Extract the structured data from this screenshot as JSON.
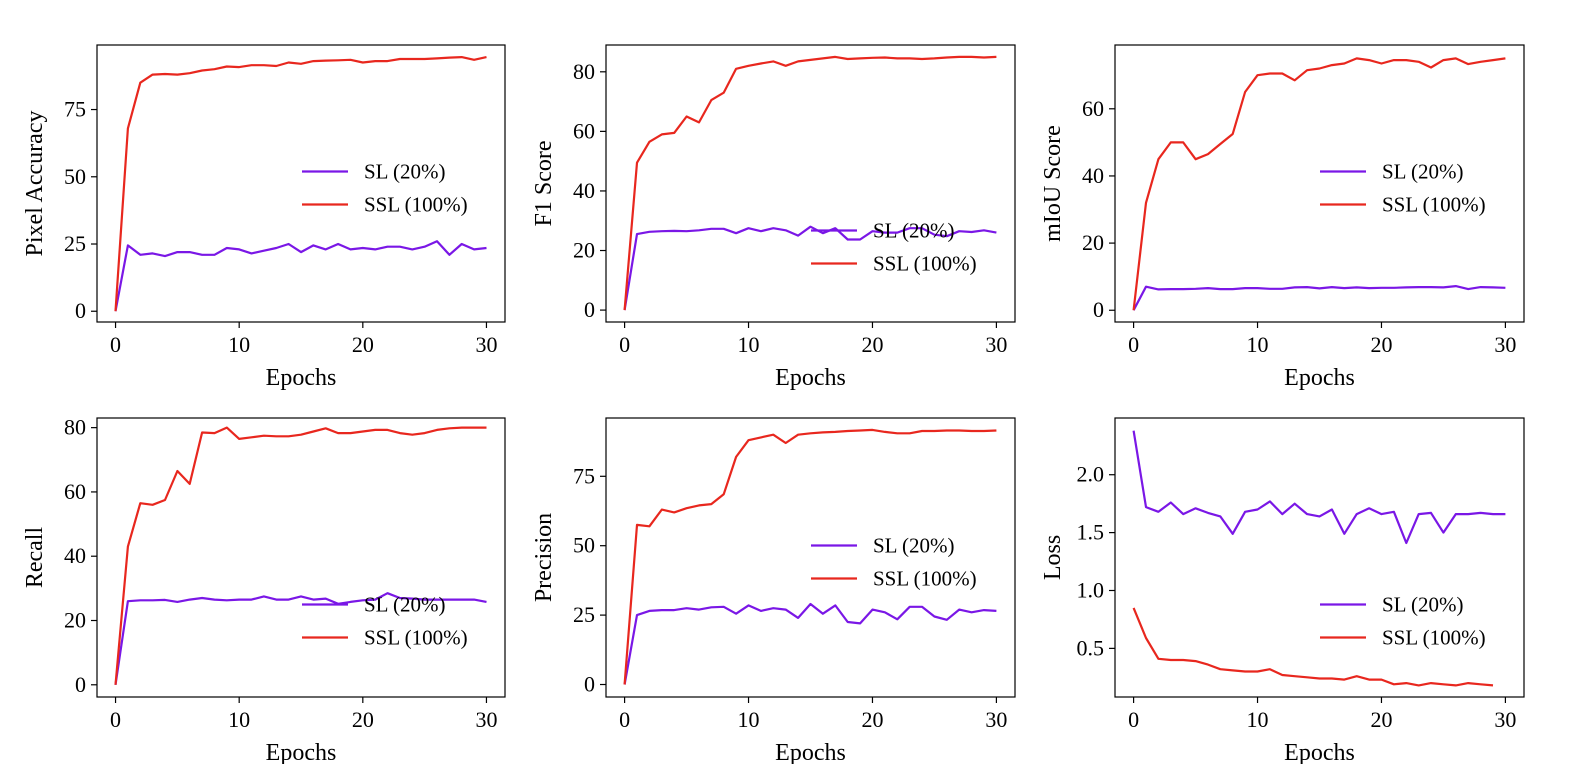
{
  "figure": {
    "colors": {
      "sl": "#7a17e6",
      "ssl": "#e8271e",
      "axis": "#000000"
    },
    "legend_entries": [
      "SL (20%)",
      "SSL (100%)"
    ]
  },
  "chart_data": [
    {
      "type": "line",
      "title": "",
      "xlabel": "Epochs",
      "ylabel": "Pixel Accuracy",
      "xlim": [
        -1.5,
        31.5
      ],
      "ylim": [
        -4,
        99
      ],
      "xticks": [
        0,
        10,
        20,
        30
      ],
      "yticks": [
        0,
        25,
        50,
        75
      ],
      "legend_position": "center-right",
      "grid": false,
      "series": [
        {
          "name": "SL (20%)",
          "color": "#7a17e6",
          "x": [
            0,
            1,
            2,
            3,
            4,
            5,
            6,
            7,
            8,
            9,
            10,
            11,
            12,
            13,
            14,
            15,
            16,
            17,
            18,
            19,
            20,
            21,
            22,
            23,
            24,
            25,
            26,
            27,
            28,
            29,
            30
          ],
          "y": [
            0,
            24.5,
            21,
            21.5,
            20.5,
            22,
            22,
            21,
            21,
            23.5,
            23,
            21.5,
            22.5,
            23.5,
            25,
            22,
            24.5,
            23,
            25,
            23,
            23.5,
            23,
            24,
            24,
            23,
            24,
            26,
            21,
            25,
            23,
            23.5
          ]
        },
        {
          "name": "SSL (100%)",
          "color": "#e8271e",
          "x": [
            0,
            1,
            2,
            3,
            4,
            5,
            6,
            7,
            8,
            9,
            10,
            11,
            12,
            13,
            14,
            15,
            16,
            17,
            18,
            19,
            20,
            21,
            22,
            23,
            24,
            25,
            26,
            27,
            28,
            29,
            30
          ],
          "y": [
            0,
            68,
            85,
            88,
            88.2,
            88,
            88.5,
            89.5,
            90,
            91,
            90.8,
            91.5,
            91.5,
            91.2,
            92.5,
            92,
            93,
            93.2,
            93.3,
            93.5,
            92.5,
            93,
            93,
            93.8,
            93.8,
            93.8,
            94,
            94.3,
            94.5,
            93.5,
            94.5
          ]
        }
      ]
    },
    {
      "type": "line",
      "title": "",
      "xlabel": "Epochs",
      "ylabel": "F1 Score",
      "xlim": [
        -1.5,
        31.5
      ],
      "ylim": [
        -4,
        89
      ],
      "xticks": [
        0,
        10,
        20,
        30
      ],
      "yticks": [
        0,
        20,
        40,
        60,
        80
      ],
      "legend_position": "lower-right",
      "grid": false,
      "series": [
        {
          "name": "SL (20%)",
          "color": "#7a17e6",
          "x": [
            0,
            1,
            2,
            3,
            4,
            5,
            6,
            7,
            8,
            9,
            10,
            11,
            12,
            13,
            14,
            15,
            16,
            17,
            18,
            19,
            20,
            21,
            22,
            23,
            24,
            25,
            26,
            27,
            28,
            29,
            30
          ],
          "y": [
            0,
            25.5,
            26.3,
            26.5,
            26.6,
            26.5,
            26.8,
            27.3,
            27.3,
            25.8,
            27.5,
            26.5,
            27.5,
            26.8,
            25,
            28,
            25.8,
            27.5,
            23.7,
            23.7,
            26.5,
            26,
            26,
            27.5,
            27.5,
            25.3,
            24.8,
            26.5,
            26.2,
            26.8,
            26
          ]
        },
        {
          "name": "SSL (100%)",
          "color": "#e8271e",
          "x": [
            0,
            1,
            2,
            3,
            4,
            5,
            6,
            7,
            8,
            9,
            10,
            11,
            12,
            13,
            14,
            15,
            16,
            17,
            18,
            19,
            20,
            21,
            22,
            23,
            24,
            25,
            26,
            27,
            28,
            29,
            30
          ],
          "y": [
            0,
            49.5,
            56.5,
            59,
            59.5,
            65,
            63,
            70.5,
            73,
            81,
            82,
            82.8,
            83.5,
            82,
            83.5,
            84,
            84.5,
            85,
            84.3,
            84.5,
            84.7,
            84.8,
            84.5,
            84.5,
            84.3,
            84.5,
            84.8,
            85,
            85,
            84.8,
            85
          ]
        }
      ]
    },
    {
      "type": "line",
      "title": "",
      "xlabel": "Epochs",
      "ylabel": "mIoU Score",
      "xlim": [
        -1.5,
        31.5
      ],
      "ylim": [
        -3.5,
        79
      ],
      "xticks": [
        0,
        10,
        20,
        30
      ],
      "yticks": [
        0,
        20,
        40,
        60
      ],
      "legend_position": "center-right",
      "grid": false,
      "series": [
        {
          "name": "SL (20%)",
          "color": "#7a17e6",
          "x": [
            0,
            1,
            2,
            3,
            4,
            5,
            6,
            7,
            8,
            9,
            10,
            11,
            12,
            13,
            14,
            15,
            16,
            17,
            18,
            19,
            20,
            21,
            22,
            23,
            24,
            25,
            26,
            27,
            28,
            29,
            30
          ],
          "y": [
            0,
            7,
            6.2,
            6.3,
            6.3,
            6.4,
            6.6,
            6.3,
            6.3,
            6.6,
            6.6,
            6.4,
            6.4,
            6.8,
            6.9,
            6.5,
            6.9,
            6.6,
            6.8,
            6.6,
            6.7,
            6.7,
            6.8,
            6.9,
            6.9,
            6.8,
            7.2,
            6.3,
            6.9,
            6.8,
            6.7
          ]
        },
        {
          "name": "SSL (100%)",
          "color": "#e8271e",
          "x": [
            0,
            1,
            2,
            3,
            4,
            5,
            6,
            7,
            8,
            9,
            10,
            11,
            12,
            13,
            14,
            15,
            16,
            17,
            18,
            19,
            20,
            21,
            22,
            23,
            24,
            25,
            26,
            27,
            28,
            29,
            30
          ],
          "y": [
            0,
            32,
            45,
            50,
            50,
            45,
            46.5,
            49.5,
            52.5,
            65,
            70,
            70.5,
            70.5,
            68.5,
            71.5,
            72,
            73,
            73.5,
            75,
            74.5,
            73.5,
            74.5,
            74.5,
            74,
            72.3,
            74.5,
            75,
            73.3,
            74,
            74.5,
            75
          ]
        }
      ]
    },
    {
      "type": "line",
      "title": "",
      "xlabel": "Epochs",
      "ylabel": "Recall",
      "xlim": [
        -1.5,
        31.5
      ],
      "ylim": [
        -3.8,
        83
      ],
      "xticks": [
        0,
        10,
        20,
        30
      ],
      "yticks": [
        0,
        20,
        40,
        60,
        80
      ],
      "legend_position": "lower-right",
      "grid": false,
      "series": [
        {
          "name": "SL (20%)",
          "color": "#7a17e6",
          "x": [
            0,
            1,
            2,
            3,
            4,
            5,
            6,
            7,
            8,
            9,
            10,
            11,
            12,
            13,
            14,
            15,
            16,
            17,
            18,
            19,
            20,
            21,
            22,
            23,
            24,
            25,
            26,
            27,
            28,
            29,
            30
          ],
          "y": [
            0,
            26,
            26.3,
            26.3,
            26.4,
            25.8,
            26.5,
            27,
            26.5,
            26.3,
            26.5,
            26.5,
            27.5,
            26.5,
            26.5,
            27.5,
            26.5,
            26.8,
            25.2,
            25.8,
            26.3,
            26.5,
            28.5,
            27,
            26.8,
            26.5,
            26.5,
            26.5,
            26.5,
            26.5,
            25.8
          ]
        },
        {
          "name": "SSL (100%)",
          "color": "#e8271e",
          "x": [
            0,
            1,
            2,
            3,
            4,
            5,
            6,
            7,
            8,
            9,
            10,
            11,
            12,
            13,
            14,
            15,
            16,
            17,
            18,
            19,
            20,
            21,
            22,
            23,
            24,
            25,
            26,
            27,
            28,
            29,
            30
          ],
          "y": [
            0,
            43,
            56.5,
            56,
            57.5,
            66.5,
            62.5,
            78.5,
            78.3,
            80,
            76.5,
            77,
            77.5,
            77.3,
            77.3,
            77.8,
            78.8,
            79.8,
            78.3,
            78.3,
            78.8,
            79.3,
            79.3,
            78.3,
            77.8,
            78.3,
            79.3,
            79.8,
            80,
            80,
            80
          ]
        }
      ]
    },
    {
      "type": "line",
      "title": "",
      "xlabel": "Epochs",
      "ylabel": "Precision",
      "xlim": [
        -1.5,
        31.5
      ],
      "ylim": [
        -4.5,
        96
      ],
      "xticks": [
        0,
        10,
        20,
        30
      ],
      "yticks": [
        0,
        25,
        50,
        75
      ],
      "legend_position": "center-right",
      "grid": false,
      "series": [
        {
          "name": "SL (20%)",
          "color": "#7a17e6",
          "x": [
            0,
            1,
            2,
            3,
            4,
            5,
            6,
            7,
            8,
            9,
            10,
            11,
            12,
            13,
            14,
            15,
            16,
            17,
            18,
            19,
            20,
            21,
            22,
            23,
            24,
            25,
            26,
            27,
            28,
            29,
            30
          ],
          "y": [
            0,
            25,
            26.5,
            26.8,
            26.8,
            27.5,
            27,
            27.8,
            28,
            25.5,
            28.5,
            26.5,
            27.5,
            27,
            24,
            29,
            25.5,
            28.5,
            22.5,
            22,
            27,
            26,
            23.5,
            28,
            28,
            24.5,
            23.3,
            27,
            26,
            26.8,
            26.5
          ]
        },
        {
          "name": "SSL (100%)",
          "color": "#e8271e",
          "x": [
            0,
            1,
            2,
            3,
            4,
            5,
            6,
            7,
            8,
            9,
            10,
            11,
            12,
            13,
            14,
            15,
            16,
            17,
            18,
            19,
            20,
            21,
            22,
            23,
            24,
            25,
            26,
            27,
            28,
            29,
            30
          ],
          "y": [
            0,
            57.5,
            57,
            63,
            62,
            63.5,
            64.5,
            65,
            68.5,
            82,
            88,
            89,
            90,
            87,
            90,
            90.5,
            90.8,
            91,
            91.3,
            91.5,
            91.7,
            91,
            90.5,
            90.5,
            91.3,
            91.3,
            91.5,
            91.5,
            91.3,
            91.3,
            91.5
          ]
        }
      ]
    },
    {
      "type": "line",
      "title": "",
      "xlabel": "Epochs",
      "ylabel": "Loss",
      "xlim": [
        -1.5,
        31.5
      ],
      "ylim": [
        0.08,
        2.49
      ],
      "xticks": [
        0,
        10,
        20,
        30
      ],
      "yticks": [
        0.5,
        1.0,
        1.5,
        2.0
      ],
      "yticklabels": [
        "0.5",
        "1.0",
        "1.5",
        "2.0"
      ],
      "legend_position": "lower-right",
      "grid": false,
      "series": [
        {
          "name": "SL (20%)",
          "color": "#7a17e6",
          "x": [
            0,
            1,
            2,
            3,
            4,
            5,
            6,
            7,
            8,
            9,
            10,
            11,
            12,
            13,
            14,
            15,
            16,
            17,
            18,
            19,
            20,
            21,
            22,
            23,
            24,
            25,
            26,
            27,
            28,
            29,
            30
          ],
          "y": [
            2.38,
            1.72,
            1.68,
            1.76,
            1.66,
            1.71,
            1.67,
            1.64,
            1.49,
            1.68,
            1.7,
            1.77,
            1.66,
            1.75,
            1.66,
            1.64,
            1.7,
            1.49,
            1.66,
            1.71,
            1.66,
            1.68,
            1.41,
            1.66,
            1.67,
            1.5,
            1.66,
            1.66,
            1.67,
            1.66,
            1.66
          ]
        },
        {
          "name": "SSL (100%)",
          "color": "#e8271e",
          "x": [
            0,
            1,
            2,
            3,
            4,
            5,
            6,
            7,
            8,
            9,
            10,
            11,
            12,
            13,
            14,
            15,
            16,
            17,
            18,
            19,
            20,
            21,
            22,
            23,
            24,
            25,
            26,
            27,
            28,
            29
          ],
          "y": [
            0.85,
            0.59,
            0.41,
            0.4,
            0.4,
            0.39,
            0.36,
            0.32,
            0.31,
            0.3,
            0.3,
            0.32,
            0.27,
            0.26,
            0.25,
            0.24,
            0.24,
            0.23,
            0.26,
            0.23,
            0.23,
            0.19,
            0.2,
            0.18,
            0.2,
            0.19,
            0.18,
            0.2,
            0.19,
            0.18
          ]
        }
      ]
    }
  ]
}
